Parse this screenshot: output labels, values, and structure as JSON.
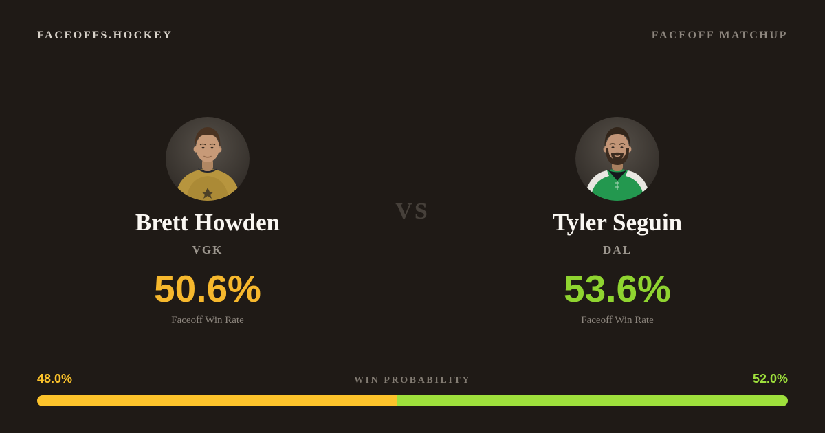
{
  "header": {
    "brand": "FACEOFFS.HOCKEY",
    "label": "FACEOFF MATCHUP"
  },
  "matchup": {
    "vs_label": "VS"
  },
  "players": [
    {
      "name": "Brett Howden",
      "team": "VGK",
      "faceoff_win_rate": "50.6%",
      "rate_label": "Faceoff Win Rate",
      "accent_color": "#f6b82d",
      "jersey_color": "#b7953e",
      "avatar_icon": "brett-howden-headshot"
    },
    {
      "name": "Tyler Seguin",
      "team": "DAL",
      "faceoff_win_rate": "53.6%",
      "rate_label": "Faceoff Win Rate",
      "accent_color": "#8fd430",
      "jersey_color": "#23984f",
      "avatar_icon": "tyler-seguin-headshot"
    }
  ],
  "win_probability": {
    "title": "WIN PROBABILITY",
    "left_label": "48.0%",
    "right_label": "52.0%",
    "left_value": 48.0,
    "right_value": 52.0,
    "bar_colors": {
      "left": "#fcc32b",
      "right": "#9ee03c"
    }
  }
}
